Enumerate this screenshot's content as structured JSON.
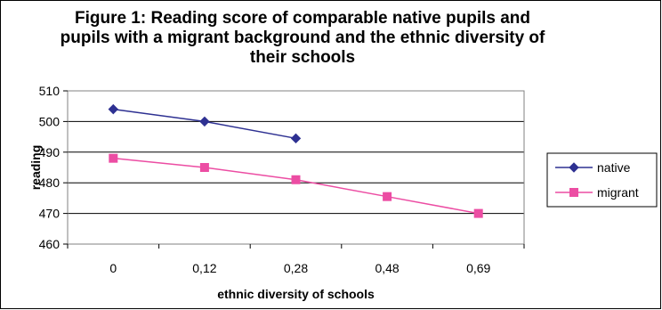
{
  "chart_data": {
    "type": "line",
    "title": "Figure 1: Reading score of comparable native pupils and pupils with a migrant background and the ethnic diversity of their schools",
    "xlabel": "ethnic diversity of schools",
    "ylabel": "reading",
    "categories": [
      "0",
      "0,12",
      "0,28",
      "0,48",
      "0,69"
    ],
    "ylim": [
      460,
      510
    ],
    "yticks": [
      460,
      470,
      480,
      490,
      500,
      510
    ],
    "grid": "horizontal",
    "legend_position": "right",
    "series": [
      {
        "name": "native",
        "values": [
          504,
          500,
          494.5,
          null,
          null
        ],
        "color": "#2E3192",
        "marker": "diamond"
      },
      {
        "name": "migrant",
        "values": [
          488,
          485,
          481,
          475.5,
          470
        ],
        "color": "#EC4DA3",
        "marker": "square"
      }
    ]
  }
}
